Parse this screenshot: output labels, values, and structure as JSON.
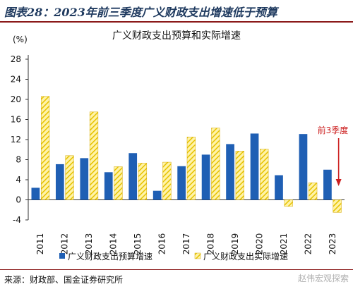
{
  "header": {
    "figure_title": "图表28：2023年前三季度广义财政支出增速低于预算"
  },
  "footer": {
    "source": "来源：财政部、国金证券研究所",
    "watermark": "赵伟宏观探索"
  },
  "colors": {
    "series_budget": "#1f5fb4",
    "series_actual": "#ffe57f",
    "series_actual_border": "#d4a800",
    "axis": "#333333",
    "annotation": "#cc1f1f",
    "rule": "#8b1a1a"
  },
  "chart_data": {
    "type": "bar",
    "title": "广义财政支出预算和实际增速",
    "ylabel": "(%)",
    "xlabel": "",
    "ylim": [
      -4,
      28
    ],
    "yticks": [
      -4,
      0,
      4,
      8,
      12,
      16,
      20,
      24,
      28
    ],
    "grid": false,
    "legend_position": "bottom",
    "categories": [
      "2011",
      "2012",
      "2013",
      "2014",
      "2015",
      "2016",
      "2017",
      "2018",
      "2019",
      "2020",
      "2021",
      "2022",
      "2023"
    ],
    "series": [
      {
        "name": "广义财政支出预算增速",
        "style": "solid",
        "values": [
          2.4,
          7.1,
          8.3,
          5.5,
          9.3,
          1.8,
          6.7,
          9.0,
          11.1,
          13.2,
          4.9,
          13.1,
          6.0
        ]
      },
      {
        "name": "广义财政支出实际增速",
        "style": "hatched",
        "values": [
          20.6,
          8.8,
          17.5,
          6.6,
          7.3,
          7.5,
          12.5,
          14.3,
          9.7,
          10.1,
          -1.3,
          3.4,
          -2.5
        ]
      }
    ],
    "annotation": {
      "text": "前3季度",
      "target_category": "2023",
      "arrow": "down"
    }
  }
}
